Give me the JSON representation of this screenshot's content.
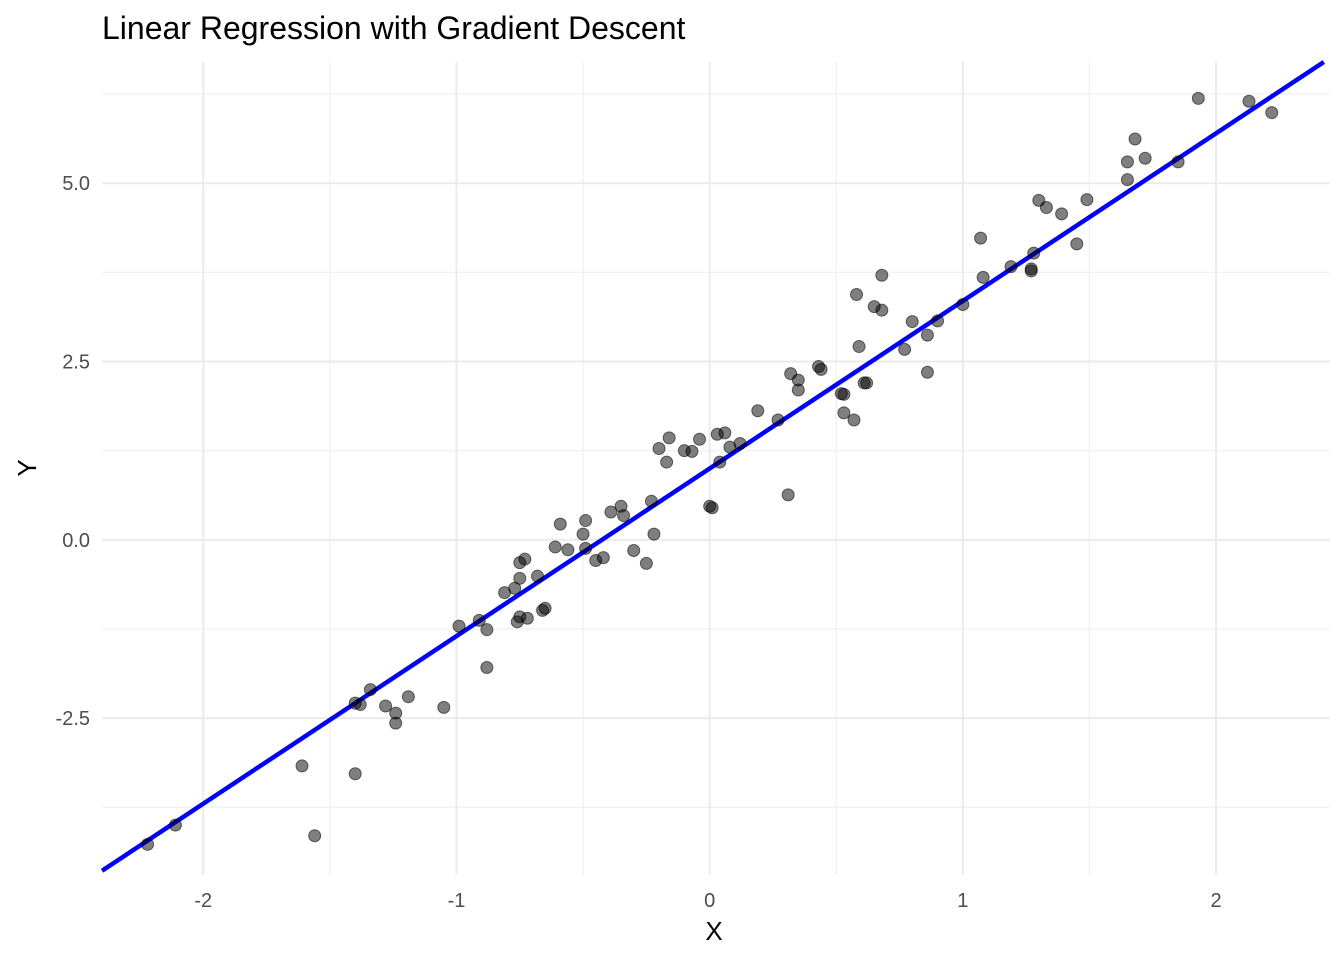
{
  "chart_data": {
    "type": "scatter",
    "title": "Linear Regression with Gradient Descent",
    "xlabel": "X",
    "ylabel": "Y",
    "xlim": [
      -2.4,
      2.45
    ],
    "ylim": [
      -4.7,
      6.7
    ],
    "x_ticks": [
      -2,
      -1,
      0,
      1,
      2
    ],
    "x_tick_labels": [
      "-2",
      "-1",
      "0",
      "1",
      "2"
    ],
    "y_ticks": [
      -2.5,
      0,
      2.5,
      5
    ],
    "y_tick_labels": [
      "-2.5",
      "0.0",
      "2.5",
      "5.0"
    ],
    "grid": true,
    "legend": "none",
    "colors": {
      "points": "#000000",
      "fit_line": "#0000ff",
      "grid": "#ebebeb"
    },
    "fit_line": {
      "slope": 2.35,
      "intercept": 1.0
    },
    "series": [
      {
        "type": "scatter",
        "points": [
          [
            -2.22,
            -4.27
          ],
          [
            -2.11,
            -4.0
          ],
          [
            -1.61,
            -3.17
          ],
          [
            -1.56,
            -4.15
          ],
          [
            -1.4,
            -3.28
          ],
          [
            -1.4,
            -2.29
          ],
          [
            -1.38,
            -2.31
          ],
          [
            -1.34,
            -2.1
          ],
          [
            -1.28,
            -2.33
          ],
          [
            -1.24,
            -2.43
          ],
          [
            -1.24,
            -2.57
          ],
          [
            -1.19,
            -2.2
          ],
          [
            -1.05,
            -2.35
          ],
          [
            -0.99,
            -1.21
          ],
          [
            -0.91,
            -1.13
          ],
          [
            -0.88,
            -1.26
          ],
          [
            -0.88,
            -1.79
          ],
          [
            -0.81,
            -0.74
          ],
          [
            -0.77,
            -0.68
          ],
          [
            -0.76,
            -1.15
          ],
          [
            -0.75,
            -1.08
          ],
          [
            -0.75,
            -0.54
          ],
          [
            -0.75,
            -0.32
          ],
          [
            -0.73,
            -0.27
          ],
          [
            -0.72,
            -1.1
          ],
          [
            -0.68,
            -0.51
          ],
          [
            -0.66,
            -0.99
          ],
          [
            -0.65,
            -0.96
          ],
          [
            -0.61,
            -0.1
          ],
          [
            -0.59,
            0.22
          ],
          [
            -0.56,
            -0.14
          ],
          [
            -0.5,
            0.08
          ],
          [
            -0.49,
            0.27
          ],
          [
            -0.49,
            -0.12
          ],
          [
            -0.45,
            -0.29
          ],
          [
            -0.42,
            -0.25
          ],
          [
            -0.39,
            0.39
          ],
          [
            -0.35,
            0.47
          ],
          [
            -0.34,
            0.34
          ],
          [
            -0.3,
            -0.15
          ],
          [
            -0.25,
            -0.33
          ],
          [
            -0.23,
            0.54
          ],
          [
            -0.22,
            0.08
          ],
          [
            -0.2,
            1.28
          ],
          [
            -0.17,
            1.09
          ],
          [
            -0.16,
            1.43
          ],
          [
            -0.1,
            1.25
          ],
          [
            -0.07,
            1.24
          ],
          [
            -0.04,
            1.41
          ],
          [
            0.0,
            0.47
          ],
          [
            0.01,
            0.45
          ],
          [
            0.03,
            1.48
          ],
          [
            0.04,
            1.09
          ],
          [
            0.06,
            1.5
          ],
          [
            0.08,
            1.3
          ],
          [
            0.12,
            1.35
          ],
          [
            0.19,
            1.81
          ],
          [
            0.27,
            1.68
          ],
          [
            0.31,
            0.63
          ],
          [
            0.32,
            2.33
          ],
          [
            0.35,
            2.24
          ],
          [
            0.35,
            2.1
          ],
          [
            0.43,
            2.43
          ],
          [
            0.44,
            2.39
          ],
          [
            0.52,
            2.05
          ],
          [
            0.53,
            2.04
          ],
          [
            0.53,
            1.78
          ],
          [
            0.57,
            1.68
          ],
          [
            0.58,
            3.44
          ],
          [
            0.59,
            2.71
          ],
          [
            0.61,
            2.2
          ],
          [
            0.62,
            2.2
          ],
          [
            0.65,
            3.27
          ],
          [
            0.68,
            3.22
          ],
          [
            0.68,
            3.71
          ],
          [
            0.77,
            2.67
          ],
          [
            0.8,
            3.06
          ],
          [
            0.86,
            2.87
          ],
          [
            0.86,
            2.35
          ],
          [
            0.9,
            3.07
          ],
          [
            1.0,
            3.3
          ],
          [
            1.07,
            4.23
          ],
          [
            1.08,
            3.68
          ],
          [
            1.19,
            3.83
          ],
          [
            1.27,
            3.77
          ],
          [
            1.27,
            3.8
          ],
          [
            1.28,
            4.02
          ],
          [
            1.3,
            4.76
          ],
          [
            1.33,
            4.66
          ],
          [
            1.39,
            4.57
          ],
          [
            1.45,
            4.15
          ],
          [
            1.49,
            4.77
          ],
          [
            1.65,
            5.05
          ],
          [
            1.65,
            5.3
          ],
          [
            1.68,
            5.62
          ],
          [
            1.72,
            5.35
          ],
          [
            1.85,
            5.3
          ],
          [
            1.93,
            6.19
          ],
          [
            2.13,
            6.15
          ],
          [
            2.22,
            5.99
          ]
        ]
      }
    ]
  }
}
